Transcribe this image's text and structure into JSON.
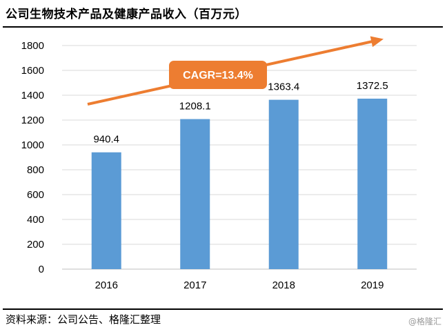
{
  "title": "公司生物技术产品及健康产品收入（百万元）",
  "source": "资料来源：公司公告、格隆汇整理",
  "watermark": "@格隆汇",
  "annotation": "CAGR=13.4%",
  "colors": {
    "bar": "#5b9bd5",
    "arrow": "#ed7d31",
    "grid": "#d9d9d9",
    "axis": "#bfbfbf"
  },
  "chart_data": {
    "type": "bar",
    "categories": [
      "2016",
      "2017",
      "2018",
      "2019"
    ],
    "values": [
      940.4,
      1208.1,
      1363.4,
      1372.5
    ],
    "value_labels": [
      "940.4",
      "1208.1",
      "1363.4",
      "1372.5"
    ],
    "ylim": [
      0,
      1800
    ],
    "yticks": [
      0,
      200,
      400,
      600,
      800,
      1000,
      1200,
      1400,
      1600,
      1800
    ],
    "grid": true,
    "trend_arrow": {
      "label": "CAGR=13.4%",
      "direction": "up"
    }
  }
}
